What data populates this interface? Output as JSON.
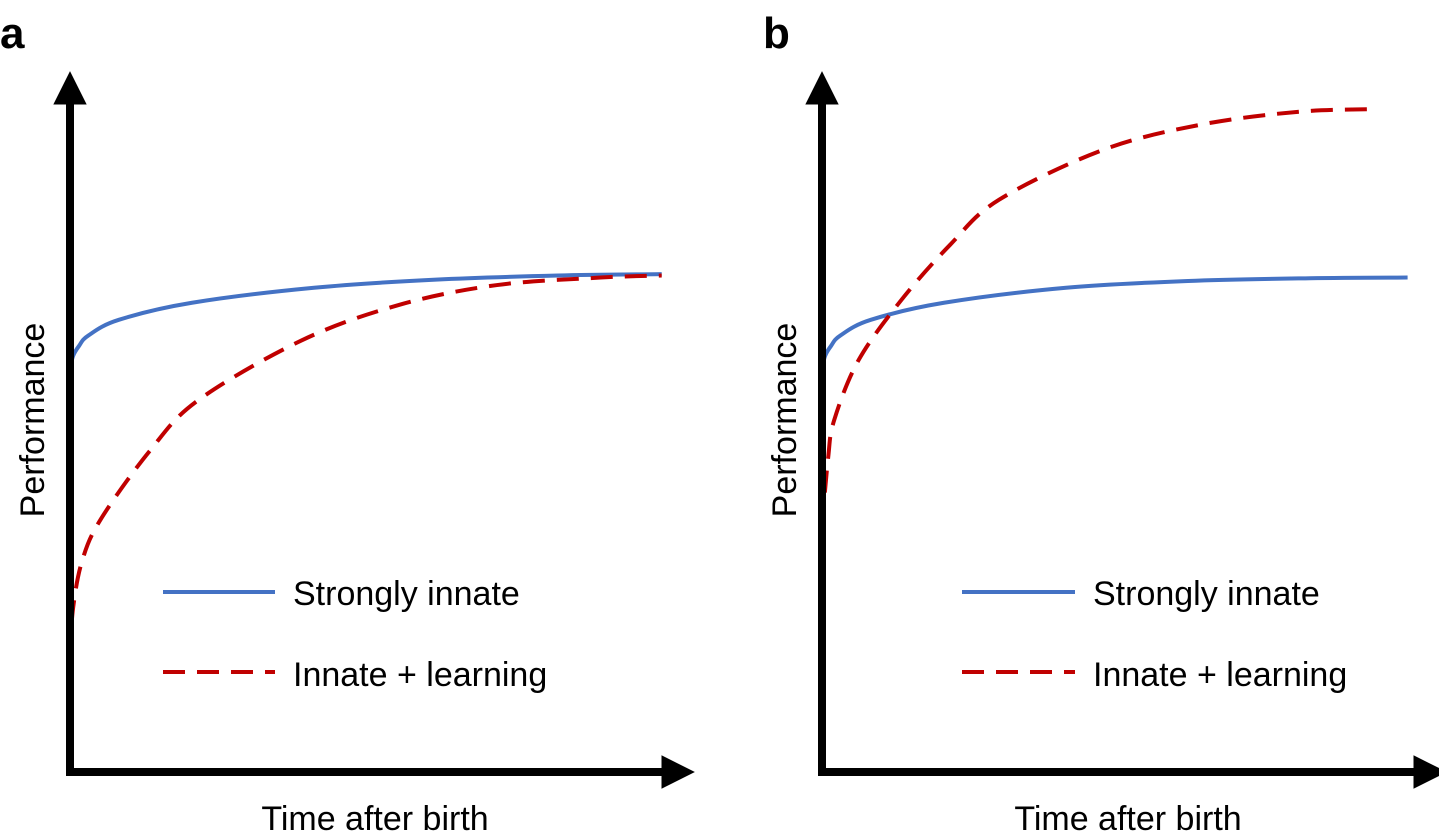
{
  "chart_data": [
    {
      "type": "line",
      "panel_label": "a",
      "xlabel": "Time after birth",
      "ylabel": "Performance",
      "xlim": [
        0,
        100
      ],
      "ylim": [
        0,
        100
      ],
      "grid": false,
      "legend_placement": "bottom-right",
      "series": [
        {
          "name": "Strongly innate",
          "color": "#4472c4",
          "style": "solid",
          "points": [
            [
              0,
              59
            ],
            [
              0.5,
              61
            ],
            [
              1.5,
              62.5
            ],
            [
              3,
              64
            ],
            [
              8,
              66.3
            ],
            [
              20,
              68.8
            ],
            [
              40,
              71
            ],
            [
              60,
              72.2
            ],
            [
              80,
              72.8
            ],
            [
              97,
              73
            ]
          ]
        },
        {
          "name": "Innate + learning",
          "color": "#c00000",
          "style": "dashed",
          "points": [
            [
              0,
              17
            ],
            [
              0.5,
              24
            ],
            [
              2,
              31
            ],
            [
              5,
              37
            ],
            [
              13,
              47
            ],
            [
              21,
              54.5
            ],
            [
              38,
              63.3
            ],
            [
              54,
              68.5
            ],
            [
              70,
              71.4
            ],
            [
              87,
              72.5
            ],
            [
              97,
              72.8
            ]
          ]
        }
      ]
    },
    {
      "type": "line",
      "panel_label": "b",
      "xlabel": "Time after birth",
      "ylabel": "Performance",
      "xlim": [
        0,
        100
      ],
      "ylim": [
        0,
        100
      ],
      "grid": false,
      "legend_placement": "bottom-right",
      "series": [
        {
          "name": "Strongly innate",
          "color": "#4472c4",
          "style": "solid",
          "points": [
            [
              0,
              59
            ],
            [
              0.5,
              61
            ],
            [
              1.5,
              62.5
            ],
            [
              3,
              64
            ],
            [
              8,
              66.3
            ],
            [
              20,
              68.8
            ],
            [
              40,
              71
            ],
            [
              60,
              72
            ],
            [
              80,
              72.4
            ],
            [
              96,
              72.5
            ]
          ]
        },
        {
          "name": "Innate + learning",
          "color": "#c00000",
          "style": "dashed",
          "points": [
            [
              0,
              36
            ],
            [
              1,
              46
            ],
            [
              2,
              51.6
            ],
            [
              6,
              60.4
            ],
            [
              13,
              69.2
            ],
            [
              21,
              77.3
            ],
            [
              29,
              83.9
            ],
            [
              46,
              91.2
            ],
            [
              62,
              94.9
            ],
            [
              78,
              96.8
            ],
            [
              91,
              97.2
            ]
          ]
        }
      ]
    }
  ]
}
